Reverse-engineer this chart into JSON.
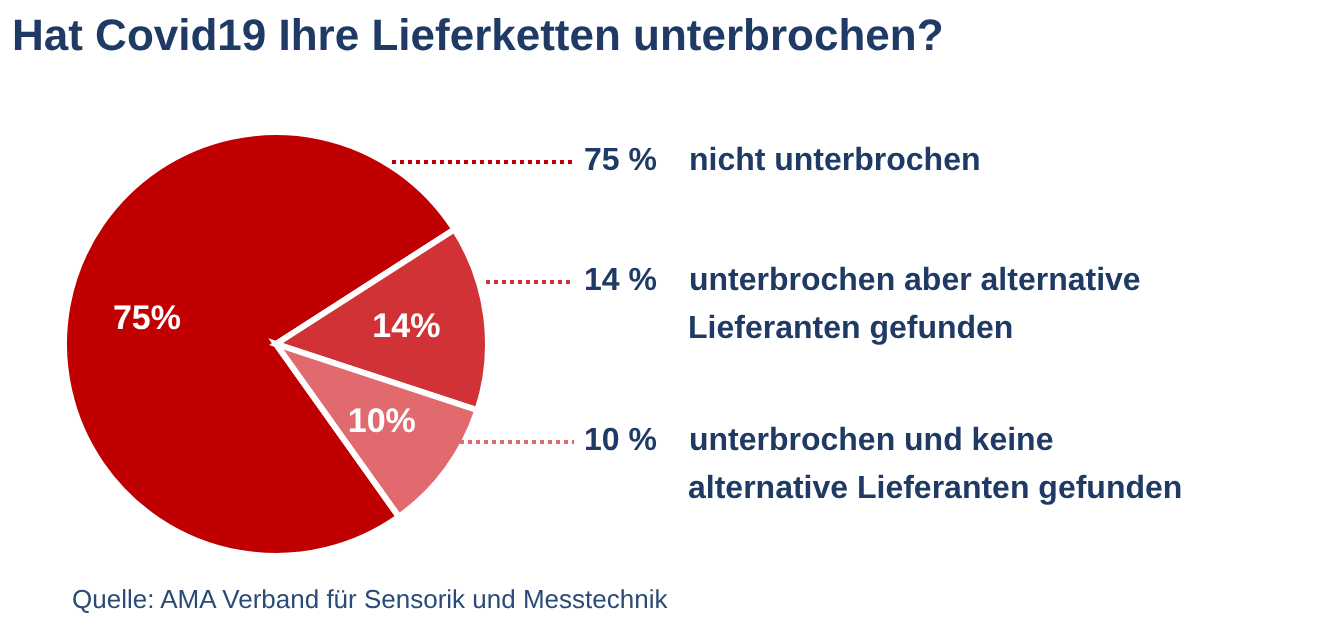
{
  "chart_data": {
    "type": "pie",
    "title": "Hat Covid19 Ihre Lieferketten unterbrochen?",
    "categories": [
      "nicht unterbrochen",
      "unterbrochen aber alternative Lieferanten gefunden",
      "unterbrochen und keine alternative Lieferanten gefunden"
    ],
    "values": [
      75,
      14,
      10
    ],
    "colors": [
      "#c00000",
      "#d03236",
      "#e06a6d"
    ],
    "value_labels": [
      "75%",
      "14%",
      "10%"
    ],
    "annotations": [
      "75 %",
      "14 %",
      "10 %",
      "Quelle: AMA Verband für Sensorik und Messtechnik"
    ]
  }
}
